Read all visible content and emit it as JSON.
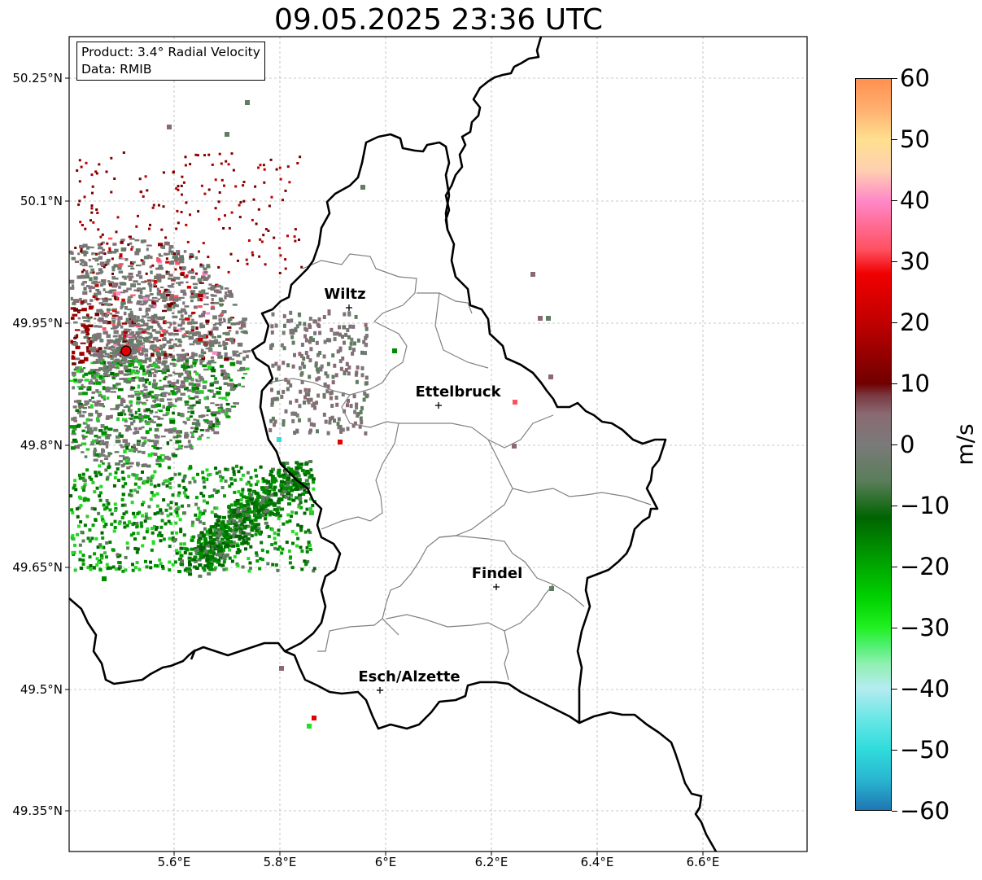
{
  "title": "09.05.2025 23:36 UTC",
  "info": {
    "product": "Product: 3.4° Radial Velocity",
    "data_source": "Data: RMIB"
  },
  "map": {
    "lat_labels": [
      "50.25°N",
      "50.1°N",
      "49.95°N",
      "49.8°N",
      "49.65°N",
      "49.5°N",
      "49.35°N"
    ],
    "lon_labels": [
      "5.6°E",
      "5.8°E",
      "6°E",
      "6.2°E",
      "6.4°E",
      "6.6°E"
    ],
    "cities": [
      {
        "name": "Wiltz",
        "lat": 49.966,
        "lon": 5.932
      },
      {
        "name": "Ettelbruck",
        "lat": 49.848,
        "lon": 6.104
      },
      {
        "name": "Findel",
        "lat": 49.626,
        "lon": 6.211
      },
      {
        "name": "Esch/Alzette",
        "lat": 49.496,
        "lon": 5.981
      }
    ],
    "radar_site": {
      "lat": 49.914,
      "lon": 5.505
    }
  },
  "colorbar": {
    "unit": "m/s",
    "ticks": [
      "60",
      "50",
      "40",
      "30",
      "20",
      "10",
      "0",
      "−10",
      "−20",
      "−30",
      "−40",
      "−50",
      "−60"
    ],
    "min": -60,
    "max": 60,
    "stops": [
      {
        "v": -60,
        "c": "#1f77b4"
      },
      {
        "v": -55,
        "c": "#29b6d0"
      },
      {
        "v": -50,
        "c": "#30dcdc"
      },
      {
        "v": -45,
        "c": "#6ae6e6"
      },
      {
        "v": -40,
        "c": "#b4ecf0"
      },
      {
        "v": -36,
        "c": "#8ff0b0"
      },
      {
        "v": -33,
        "c": "#50f070"
      },
      {
        "v": -30,
        "c": "#20f020"
      },
      {
        "v": -25,
        "c": "#00d000"
      },
      {
        "v": -20,
        "c": "#00a800"
      },
      {
        "v": -12,
        "c": "#006400"
      },
      {
        "v": -6,
        "c": "#5a7d5a"
      },
      {
        "v": 0,
        "c": "#7a7a7a"
      },
      {
        "v": 5,
        "c": "#8a6a72"
      },
      {
        "v": 8,
        "c": "#7a3a42"
      },
      {
        "v": 10,
        "c": "#700000"
      },
      {
        "v": 20,
        "c": "#c00000"
      },
      {
        "v": 28,
        "c": "#f00000"
      },
      {
        "v": 32,
        "c": "#ff5060"
      },
      {
        "v": 40,
        "c": "#ff88c8"
      },
      {
        "v": 45,
        "c": "#ffd0b0"
      },
      {
        "v": 50,
        "c": "#ffe090"
      },
      {
        "v": 55,
        "c": "#ffb070"
      },
      {
        "v": 60,
        "c": "#ff9050"
      }
    ]
  }
}
